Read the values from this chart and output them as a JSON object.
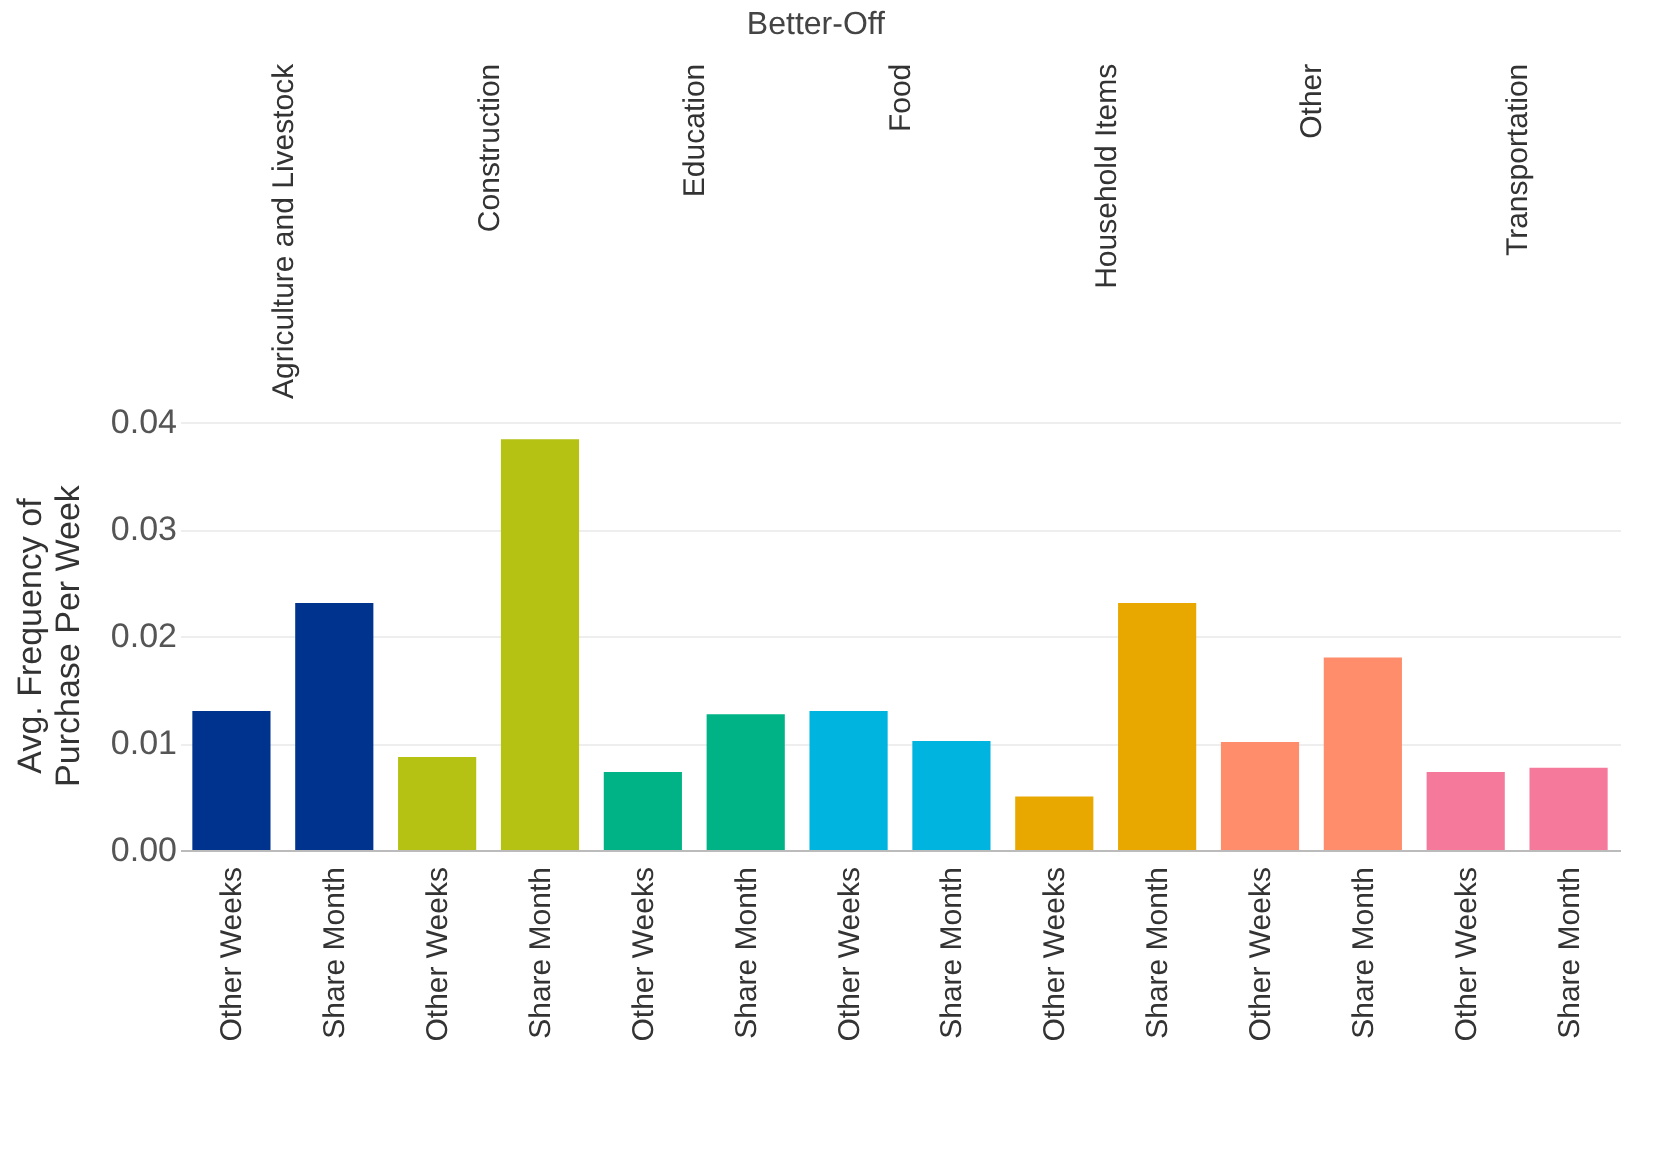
{
  "chart_data": {
    "type": "bar",
    "title": "Better-Off",
    "ylabel": "Avg. Frequency of Purchase Per Week",
    "categories": [
      "Other Weeks",
      "Share Month",
      "Other Weeks",
      "Share Month",
      "Other Weeks",
      "Share Month",
      "Other Weeks",
      "Share Month",
      "Other Weeks",
      "Share Month",
      "Other Weeks",
      "Share Month",
      "Other Weeks",
      "Share Month"
    ],
    "values": [
      0.013,
      0.0231,
      0.0087,
      0.0384,
      0.0073,
      0.0127,
      0.013,
      0.0102,
      0.005,
      0.0231,
      0.0101,
      0.018,
      0.0073,
      0.0077
    ],
    "colors": [
      "#00338d",
      "#00338d",
      "#b5c113",
      "#b5c113",
      "#00b386",
      "#00b386",
      "#00b4e0",
      "#00b4e0",
      "#e8a800",
      "#e8a800",
      "#ff8c6b",
      "#ff8c6b",
      "#f5799a",
      "#f5799a"
    ],
    "annotations": [
      "Agriculture and Livestock",
      "Construction",
      "Education",
      "Food",
      "Household Items",
      "Other",
      "Transportation"
    ],
    "ylim": [
      0,
      0.0402
    ],
    "yticks": [
      {
        "value": 0,
        "label": "0.00"
      },
      {
        "value": 0.01,
        "label": "0.01"
      },
      {
        "value": 0.02,
        "label": "0.02"
      },
      {
        "value": 0.03,
        "label": "0.03"
      },
      {
        "value": 0.04,
        "label": "0.04"
      }
    ],
    "grid": "y"
  }
}
